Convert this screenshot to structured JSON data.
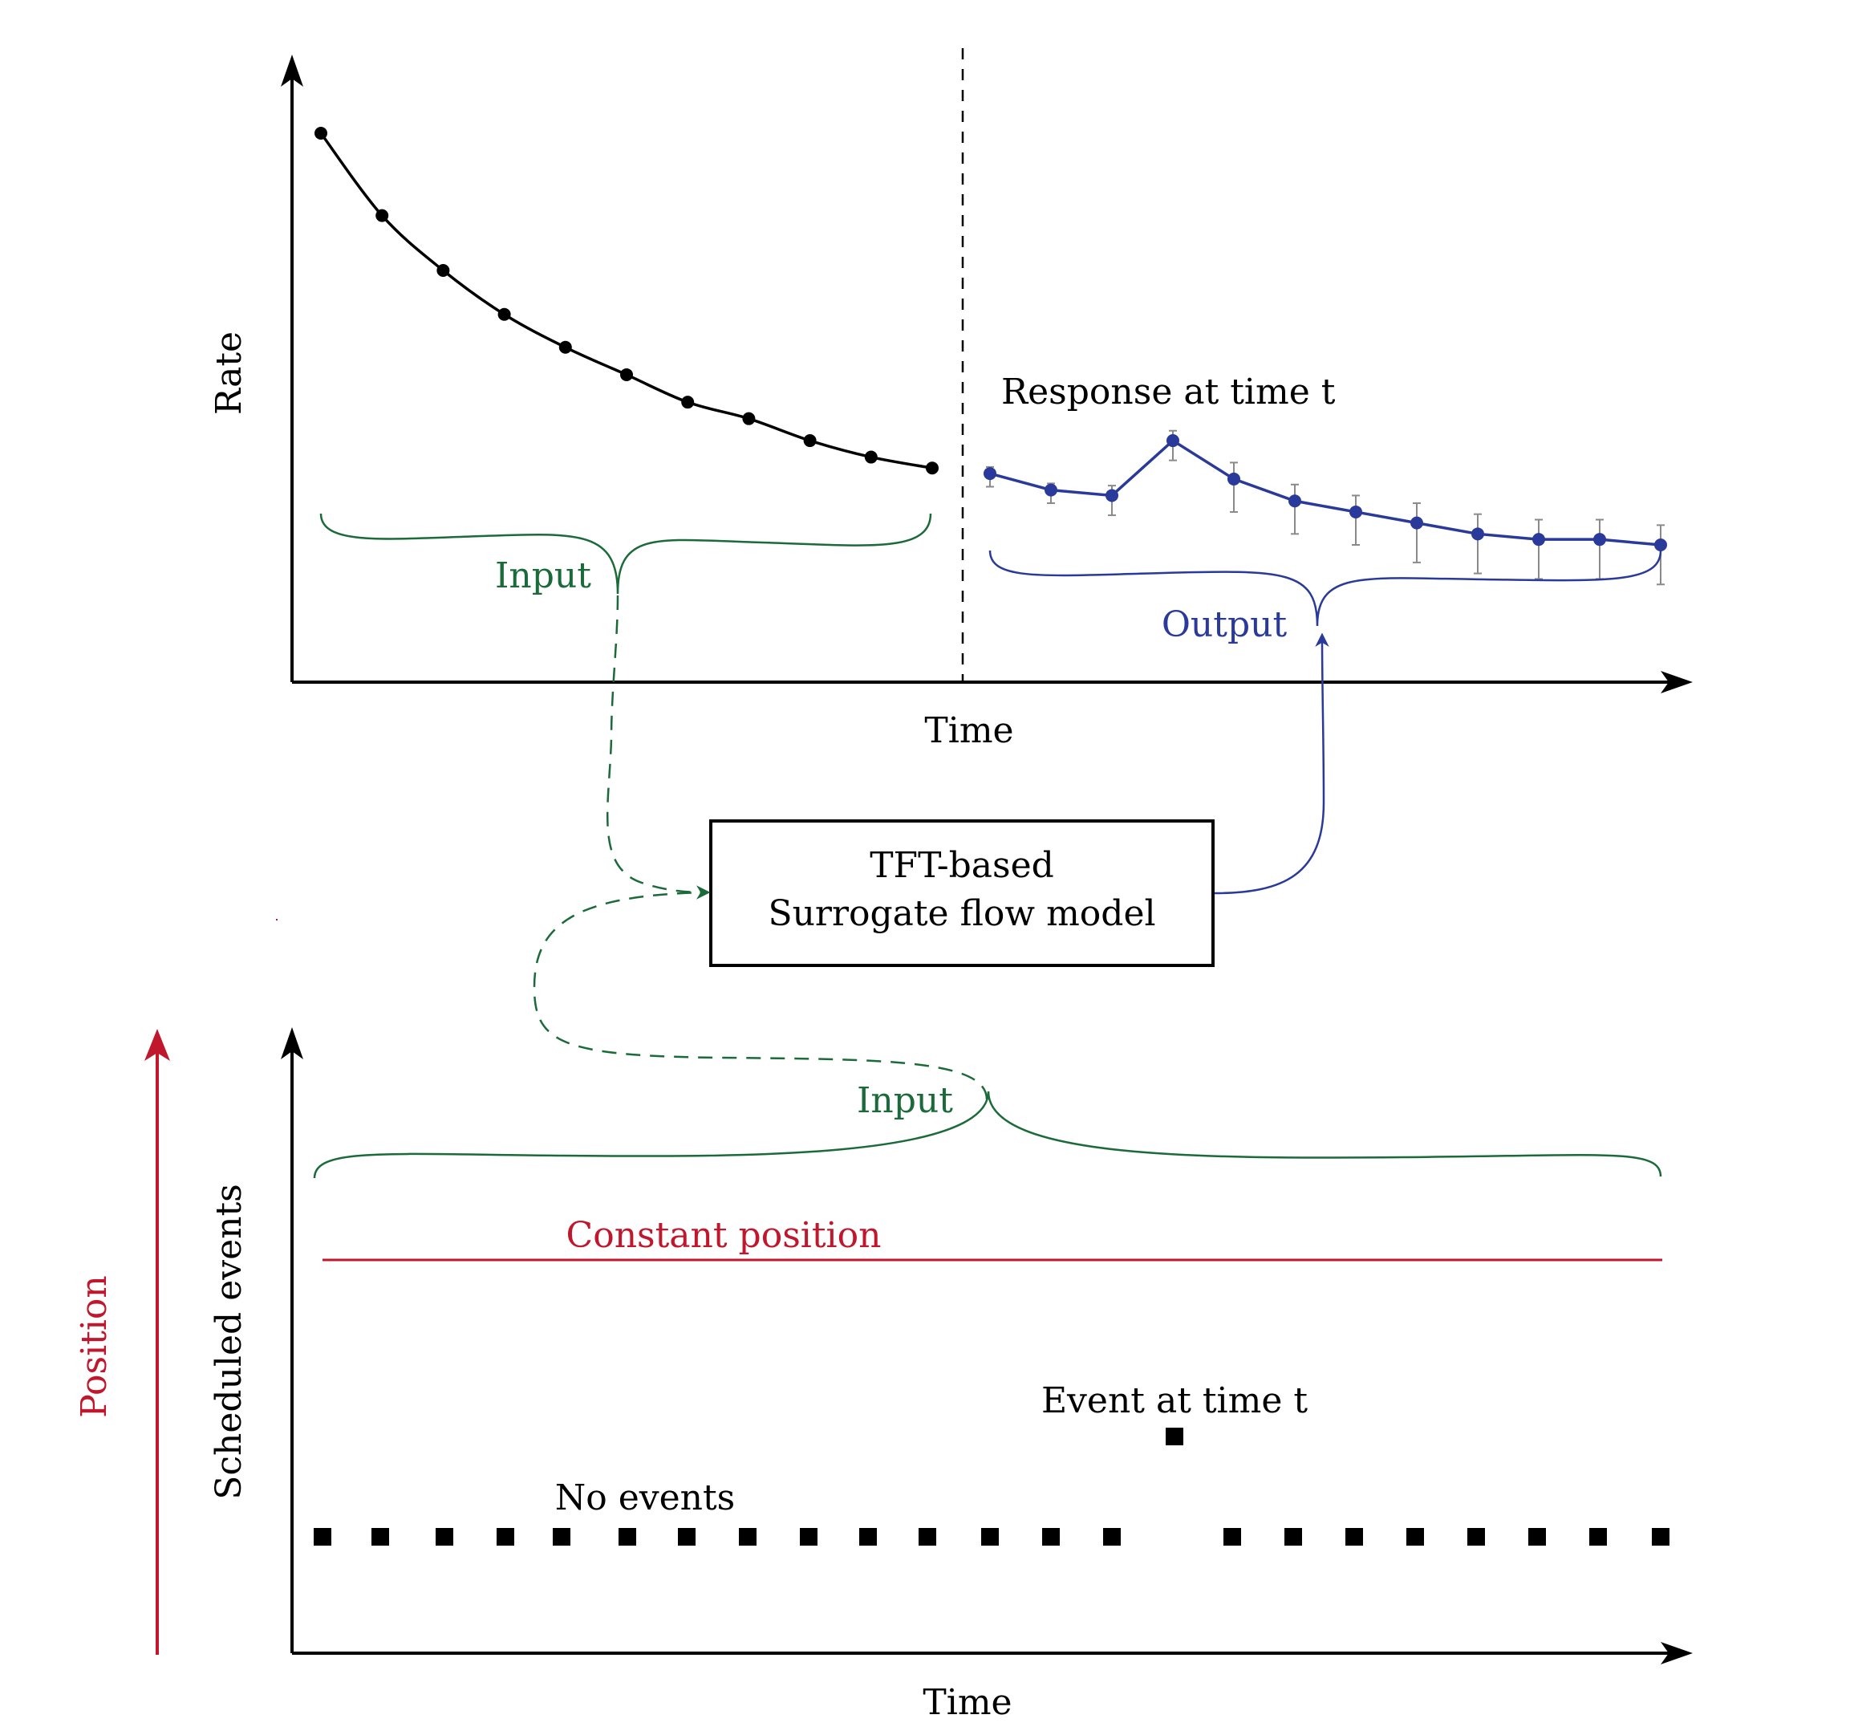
{
  "colors": {
    "black": "#000000",
    "green": "#1b6b3a",
    "blue": "#2a3a9a",
    "red": "#c0172c",
    "errorbar": "#8a8a8a"
  },
  "top_panel": {
    "y_axis_label": "Rate",
    "x_axis_label": "Time",
    "input_label": "Input",
    "output_label": "Output",
    "response_label": "Response at time t"
  },
  "model_box": {
    "line1": "TFT-based",
    "line2": "Surrogate flow model"
  },
  "bottom_panel": {
    "y_axis_label": "Scheduled events",
    "x_axis_label": "Time",
    "input_label": "Input",
    "constant_label": "Constant position",
    "event_label": "Event at time t",
    "no_events_label": "No events",
    "side_arrow_label": "Position"
  },
  "chart_data": [
    {
      "type": "line",
      "name": "input history",
      "points": 11,
      "y": [
        1.0,
        0.85,
        0.75,
        0.67,
        0.61,
        0.56,
        0.51,
        0.48,
        0.44,
        0.41,
        0.39
      ],
      "error": null
    },
    {
      "type": "line",
      "name": "predicted response",
      "points": 12,
      "y": [
        0.38,
        0.35,
        0.34,
        0.44,
        0.37,
        0.33,
        0.31,
        0.29,
        0.27,
        0.26,
        0.26,
        0.25
      ],
      "error": [
        0.02,
        0.02,
        0.03,
        0.03,
        0.05,
        0.05,
        0.05,
        0.06,
        0.06,
        0.06,
        0.06,
        0.06
      ]
    },
    {
      "type": "scatter",
      "name": "scheduled events",
      "baseline_markers": 22,
      "event_marker": 1
    }
  ]
}
